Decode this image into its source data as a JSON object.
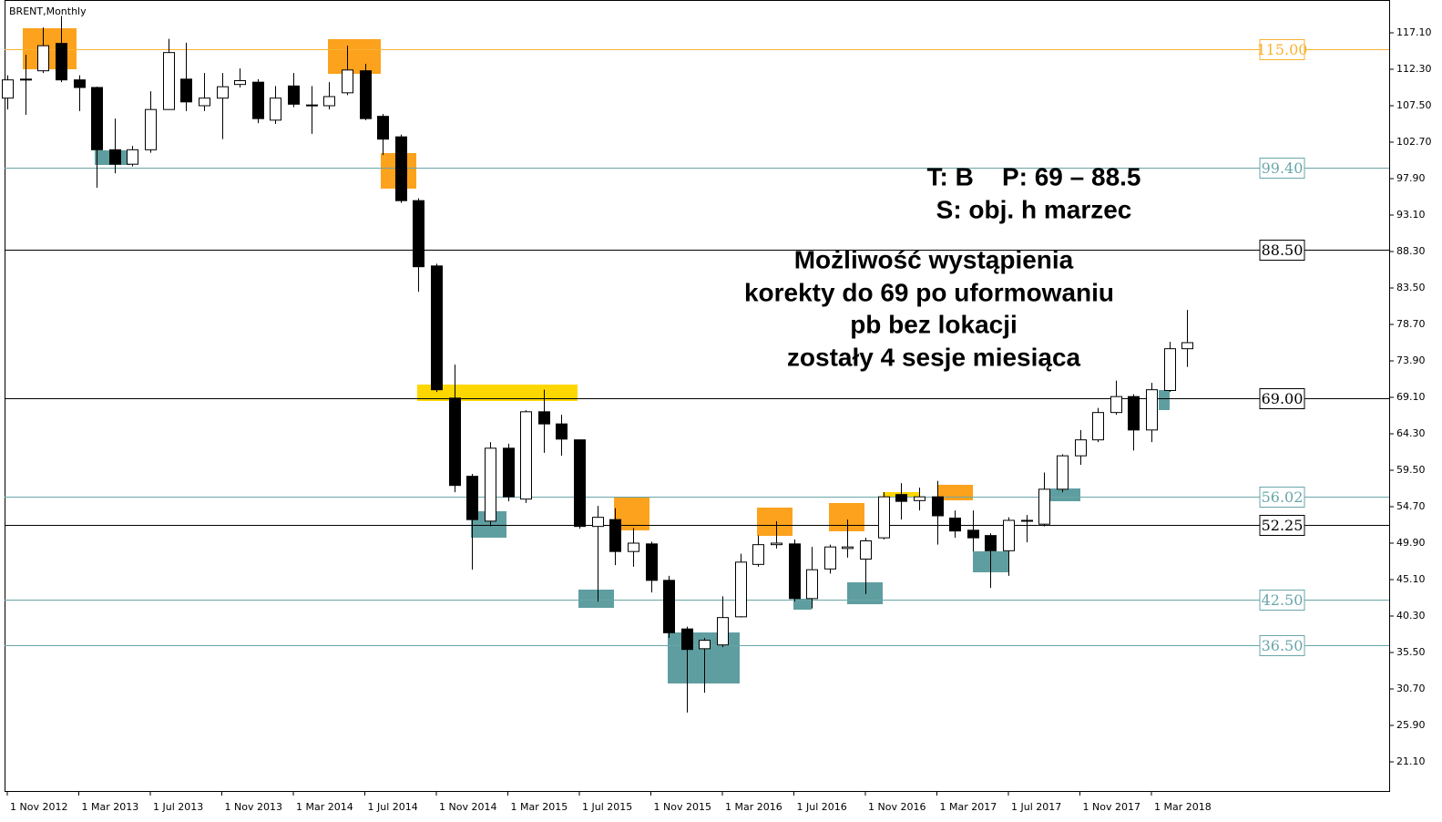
{
  "chart_data": {
    "type": "candlestick",
    "title": "BRENT,Monthly",
    "categories": [
      "1 Nov 2012",
      null,
      null,
      null,
      "1 Mar 2013",
      null,
      null,
      null,
      "1 Jul 2013",
      null,
      null,
      null,
      "1 Nov 2013",
      null,
      null,
      null,
      "1 Mar 2014",
      null,
      null,
      null,
      "1 Jul 2014",
      null,
      null,
      null,
      "1 Nov 2014",
      null,
      null,
      null,
      "1 Mar 2015",
      null,
      null,
      null,
      "1 Jul 2015",
      null,
      null,
      null,
      "1 Nov 2015",
      null,
      null,
      null,
      "1 Mar 2016",
      null,
      null,
      null,
      "1 Jul 2016",
      null,
      null,
      null,
      "1 Nov 2016",
      null,
      null,
      null,
      "1 Mar 2017",
      null,
      null,
      null,
      "1 Jul 2017",
      null,
      null,
      null,
      "1 Nov 2017",
      null,
      null,
      null,
      "1 Mar 2018",
      null,
      null
    ],
    "open": [
      108.5,
      110.9,
      112.1,
      115.7,
      110.9,
      109.9,
      101.7,
      99.8,
      101.7,
      107.0,
      111.0,
      107.5,
      108.5,
      110.3,
      110.6,
      105.6,
      110.1,
      107.5,
      107.5,
      109.2,
      112.1,
      106.1,
      103.4,
      95.0,
      86.4,
      69.0,
      58.7,
      52.8,
      62.4,
      55.7,
      67.2,
      65.6,
      63.5,
      52.1,
      53.0,
      48.8,
      49.8,
      45.0,
      38.6,
      36.0,
      36.5,
      40.2,
      47.1,
      49.7,
      49.8,
      42.6,
      46.5,
      49.2,
      47.8,
      50.6,
      56.3,
      55.5,
      56.0,
      53.2,
      51.6,
      50.9,
      48.9,
      52.9,
      52.4,
      57.0,
      61.4,
      63.5,
      67.1,
      69.2,
      64.8,
      70.0,
      75.5
    ],
    "high": [
      111.5,
      114.2,
      117.8,
      119.3,
      111.5,
      110.0,
      105.8,
      102.2,
      109.4,
      116.3,
      115.8,
      111.8,
      111.8,
      112.4,
      111.0,
      110.1,
      111.8,
      110.1,
      110.6,
      115.4,
      113.0,
      106.4,
      103.7,
      95.3,
      86.7,
      73.4,
      59.0,
      63.2,
      63.0,
      67.4,
      70.1,
      66.8,
      63.5,
      54.8,
      54.5,
      51.9,
      50.1,
      45.6,
      38.9,
      37.4,
      42.9,
      48.5,
      50.9,
      52.8,
      50.4,
      49.4,
      49.7,
      53.0,
      50.6,
      56.6,
      57.8,
      57.2,
      58.1,
      54.2,
      54.2,
      51.2,
      53.3,
      53.6,
      59.2,
      61.6,
      64.8,
      67.7,
      71.3,
      69.5,
      71.0,
      76.4,
      80.6
    ],
    "low": [
      107.0,
      106.3,
      111.8,
      110.6,
      106.8,
      96.7,
      98.6,
      99.5,
      101.3,
      107.0,
      106.8,
      106.8,
      103.1,
      109.9,
      105.2,
      105.1,
      107.3,
      103.8,
      107.0,
      108.9,
      105.6,
      101.0,
      94.7,
      83.0,
      69.8,
      56.6,
      46.4,
      52.1,
      55.4,
      55.2,
      61.8,
      61.4,
      51.8,
      42.2,
      47.0,
      46.8,
      43.4,
      37.4,
      27.6,
      30.2,
      36.2,
      40.1,
      46.8,
      49.2,
      42.2,
      41.3,
      45.9,
      48.0,
      43.2,
      50.4,
      53.0,
      54.2,
      49.7,
      50.6,
      48.8,
      44.0,
      45.6,
      50.0,
      52.1,
      56.6,
      60.2,
      63.2,
      66.8,
      62.1,
      63.2,
      69.8,
      73.1
    ],
    "close": [
      110.9,
      111.0,
      115.4,
      110.9,
      109.9,
      101.7,
      99.8,
      101.7,
      107.0,
      114.5,
      108.0,
      108.5,
      110.0,
      110.8,
      105.8,
      108.5,
      107.7,
      107.6,
      108.7,
      112.2,
      105.8,
      103.1,
      95.0,
      86.3,
      70.1,
      57.5,
      53.0,
      62.4,
      56.0,
      67.2,
      65.6,
      63.6,
      52.1,
      53.3,
      48.8,
      49.9,
      45.0,
      38.1,
      35.9,
      37.1,
      40.1,
      47.4,
      49.7,
      49.9,
      42.6,
      46.4,
      49.4,
      49.4,
      50.2,
      56.0,
      55.4,
      56.0,
      53.5,
      51.5,
      50.6,
      48.9,
      52.9,
      52.8,
      57.0,
      61.4,
      63.5,
      67.1,
      69.2,
      64.8,
      70.1,
      75.5,
      76.3
    ],
    "ylim": [
      17.26,
      121.42
    ],
    "yticks": [
      {
        "value": 117.1,
        "label": "117.10"
      },
      {
        "value": 112.3,
        "label": "112.30"
      },
      {
        "value": 107.5,
        "label": "107.50"
      },
      {
        "value": 102.7,
        "label": "102.70"
      },
      {
        "value": 97.9,
        "label": "97.90"
      },
      {
        "value": 93.1,
        "label": "93.10"
      },
      {
        "value": 88.3,
        "label": "88.30"
      },
      {
        "value": 83.5,
        "label": "83.50"
      },
      {
        "value": 78.7,
        "label": "78.70"
      },
      {
        "value": 73.9,
        "label": "73.90"
      },
      {
        "value": 69.1,
        "label": "69.10"
      },
      {
        "value": 64.3,
        "label": "64.30"
      },
      {
        "value": 59.5,
        "label": "59.50"
      },
      {
        "value": 54.7,
        "label": "54.70"
      },
      {
        "value": 49.9,
        "label": "49.90"
      },
      {
        "value": 45.1,
        "label": "45.10"
      },
      {
        "value": 40.3,
        "label": "40.30"
      },
      {
        "value": 35.5,
        "label": "35.50"
      },
      {
        "value": 30.7,
        "label": "30.70"
      },
      {
        "value": 25.9,
        "label": "25.90"
      },
      {
        "value": 21.1,
        "label": "21.10"
      }
    ],
    "levels": [
      {
        "value": 115,
        "label": "115.00",
        "color": "#f9b233"
      },
      {
        "value": 99.4,
        "label": "99.40",
        "color": "#6aa5a8"
      },
      {
        "value": 88.5,
        "label": "88.50",
        "color": "#000000"
      },
      {
        "value": 69,
        "label": "69.00",
        "color": "#000000"
      },
      {
        "value": 56.02,
        "label": "56.02",
        "color": "#6aa5a8"
      },
      {
        "value": 52.25,
        "label": "52.25",
        "color": "#000000"
      },
      {
        "value": 42.5,
        "label": "42.50",
        "color": "#6aa5a8"
      },
      {
        "value": 36.5,
        "label": "36.50",
        "color": "#6aa5a8"
      }
    ],
    "annotations": [
      "T: B    P: 69 – 88.5",
      "S: obj. h marzec",
      "Możliwość wystąpienia",
      "korekty do 69 po uformowaniu",
      "pb bez lokacji",
      "zostały 4 sesje miesiąca"
    ]
  }
}
